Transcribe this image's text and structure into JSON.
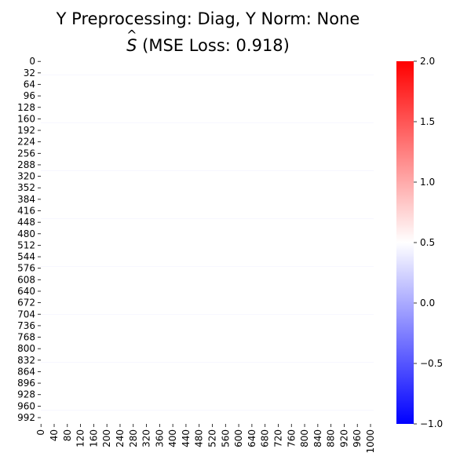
{
  "chart_data": {
    "type": "heatmap",
    "title_line1": "Y Preprocessing: Diag, Y Norm: None",
    "title_line2": {
      "symbol": "S",
      "text": " (MSE Loss: 0.918)"
    },
    "y_tick_labels": [
      "0",
      "32",
      "64",
      "96",
      "128",
      "160",
      "192",
      "224",
      "256",
      "288",
      "320",
      "352",
      "384",
      "416",
      "448",
      "480",
      "512",
      "544",
      "576",
      "608",
      "640",
      "672",
      "704",
      "736",
      "768",
      "800",
      "832",
      "864",
      "896",
      "928",
      "960",
      "992"
    ],
    "x_tick_labels": [
      "0",
      "40",
      "80",
      "120",
      "160",
      "200",
      "240",
      "280",
      "320",
      "360",
      "400",
      "440",
      "480",
      "520",
      "560",
      "600",
      "640",
      "680",
      "720",
      "760",
      "800",
      "840",
      "880",
      "920",
      "960",
      "1000"
    ],
    "matrix_size": 1010,
    "cell_value": 0.5,
    "colorbar": {
      "vmin": -1.0,
      "vmax": 2.0,
      "ticks": [
        -1.0,
        -0.5,
        0.0,
        0.5,
        1.0,
        1.5,
        2.0
      ],
      "tick_labels": [
        "−1.0",
        "−0.5",
        "0.0",
        "0.5",
        "1.0",
        "1.5",
        "2.0"
      ],
      "colors": {
        "low": "#0000ff",
        "mid": "#ffffff",
        "high": "#ff0000"
      }
    }
  }
}
